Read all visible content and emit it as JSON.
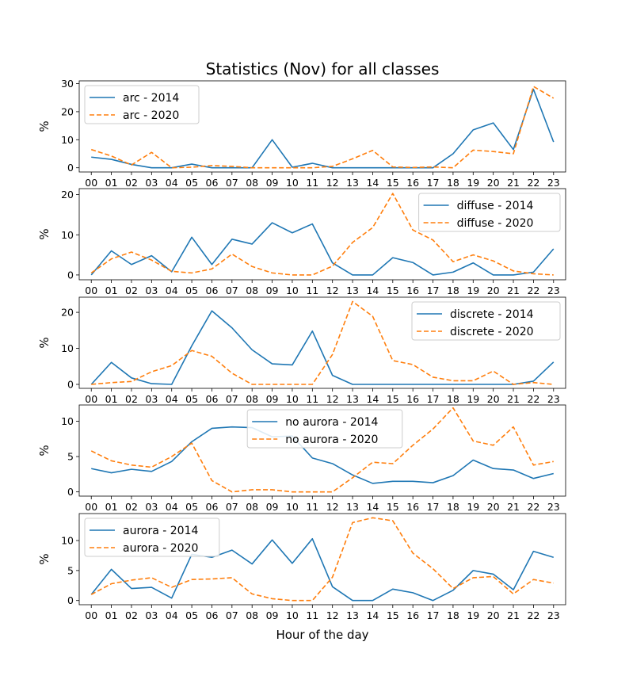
{
  "figure": {
    "title": "Statistics (Nov) for all classes",
    "xlabel": "Hour of the day",
    "colors": {
      "series_2014": "#1f77b4",
      "series_2020": "#ff7f0e"
    }
  },
  "chart_data": [
    {
      "type": "line",
      "ylabel": "%",
      "categories": [
        "00",
        "01",
        "02",
        "03",
        "04",
        "05",
        "06",
        "07",
        "08",
        "09",
        "10",
        "11",
        "12",
        "13",
        "14",
        "15",
        "16",
        "17",
        "18",
        "19",
        "20",
        "21",
        "22",
        "23"
      ],
      "ylim": [
        -1.5,
        31
      ],
      "yticks": [
        0,
        10,
        20,
        30
      ],
      "legend_position": "upper-left",
      "series": [
        {
          "name": "arc - 2014",
          "style": "solid",
          "values": [
            3.8,
            3.0,
            1.2,
            0,
            0,
            1.3,
            0,
            0,
            0,
            10.0,
            0.2,
            1.6,
            0,
            0,
            0,
            0,
            0,
            0,
            5.0,
            13.5,
            16.0,
            6.5,
            28.0,
            9.2
          ]
        },
        {
          "name": "arc - 2020",
          "style": "dashed",
          "values": [
            6.5,
            4.2,
            1.0,
            5.5,
            0,
            0.2,
            0.8,
            0.5,
            0,
            0,
            0,
            0,
            0.5,
            3.2,
            6.2,
            0.3,
            0.1,
            0.3,
            0,
            6.3,
            5.8,
            5.0,
            29.0,
            24.8
          ]
        }
      ]
    },
    {
      "type": "line",
      "ylabel": "%",
      "categories": [
        "00",
        "01",
        "02",
        "03",
        "04",
        "05",
        "06",
        "07",
        "08",
        "09",
        "10",
        "11",
        "12",
        "13",
        "14",
        "15",
        "16",
        "17",
        "18",
        "19",
        "20",
        "21",
        "22",
        "23"
      ],
      "ylim": [
        -1.2,
        21.5
      ],
      "yticks": [
        0,
        10,
        20
      ],
      "legend_position": "upper-right",
      "series": [
        {
          "name": "diffuse - 2014",
          "style": "solid",
          "values": [
            0,
            6.0,
            2.6,
            4.8,
            0.8,
            9.4,
            2.6,
            8.9,
            7.7,
            13.0,
            10.5,
            12.7,
            3.0,
            0,
            0,
            4.3,
            3.1,
            0,
            0.7,
            3.0,
            0,
            0,
            0.7,
            6.5
          ]
        },
        {
          "name": "diffuse - 2020",
          "style": "dashed",
          "values": [
            0.5,
            4.0,
            5.7,
            3.7,
            0.9,
            0.5,
            1.5,
            5.2,
            2.1,
            0.5,
            0,
            0,
            2.2,
            8.1,
            11.8,
            20.3,
            11.2,
            8.7,
            3.3,
            5.0,
            3.5,
            1.0,
            0.3,
            0
          ]
        }
      ]
    },
    {
      "type": "line",
      "ylabel": "%",
      "categories": [
        "00",
        "01",
        "02",
        "03",
        "04",
        "05",
        "06",
        "07",
        "08",
        "09",
        "10",
        "11",
        "12",
        "13",
        "14",
        "15",
        "16",
        "17",
        "18",
        "19",
        "20",
        "21",
        "22",
        "23"
      ],
      "ylim": [
        -1.1,
        24.2
      ],
      "yticks": [
        0,
        10,
        20
      ],
      "legend_position": "upper-right",
      "series": [
        {
          "name": "discrete - 2014",
          "style": "solid",
          "values": [
            0,
            6.1,
            1.8,
            0.2,
            0,
            10.7,
            20.4,
            15.7,
            9.6,
            5.7,
            5.4,
            14.8,
            2.5,
            0,
            0,
            0,
            0,
            0,
            0,
            0,
            0,
            0,
            0.9,
            6.2
          ]
        },
        {
          "name": "discrete - 2020",
          "style": "dashed",
          "values": [
            0,
            0.5,
            0.8,
            3.5,
            5.2,
            9.4,
            7.8,
            3.1,
            0,
            0,
            0,
            0,
            8.3,
            23.0,
            18.9,
            6.6,
            5.5,
            2.0,
            1.0,
            1.0,
            3.7,
            0,
            0.5,
            0
          ]
        }
      ]
    },
    {
      "type": "line",
      "ylabel": "%",
      "categories": [
        "00",
        "01",
        "02",
        "03",
        "04",
        "05",
        "06",
        "07",
        "08",
        "09",
        "10",
        "11",
        "12",
        "13",
        "14",
        "15",
        "16",
        "17",
        "18",
        "19",
        "20",
        "21",
        "22",
        "23"
      ],
      "ylim": [
        -0.6,
        12.3
      ],
      "yticks": [
        0,
        5,
        10
      ],
      "legend_position": "upper-center",
      "series": [
        {
          "name": "no aurora - 2014",
          "style": "solid",
          "values": [
            3.3,
            2.7,
            3.2,
            2.9,
            4.3,
            7.1,
            9.0,
            9.2,
            9.1,
            7.8,
            7.9,
            4.8,
            4.0,
            2.4,
            1.2,
            1.5,
            1.5,
            1.3,
            2.3,
            4.5,
            3.3,
            3.1,
            1.9,
            2.6
          ]
        },
        {
          "name": "no aurora - 2020",
          "style": "dashed",
          "values": [
            5.8,
            4.4,
            3.8,
            3.5,
            5.0,
            6.9,
            1.6,
            0,
            0.3,
            0.3,
            0,
            0,
            0,
            2.0,
            4.2,
            4.0,
            6.6,
            8.9,
            11.9,
            7.2,
            6.6,
            9.2,
            3.8,
            4.3
          ]
        }
      ]
    },
    {
      "type": "line",
      "ylabel": "%",
      "categories": [
        "00",
        "01",
        "02",
        "03",
        "04",
        "05",
        "06",
        "07",
        "08",
        "09",
        "10",
        "11",
        "12",
        "13",
        "14",
        "15",
        "16",
        "17",
        "18",
        "19",
        "20",
        "21",
        "22",
        "23"
      ],
      "ylim": [
        -0.7,
        14.5
      ],
      "yticks": [
        0,
        5,
        10
      ],
      "legend_position": "upper-left",
      "series": [
        {
          "name": "aurora - 2014",
          "style": "solid",
          "values": [
            1.0,
            5.2,
            2.0,
            2.2,
            0.4,
            7.7,
            7.2,
            8.4,
            6.1,
            10.1,
            6.2,
            10.3,
            2.3,
            0,
            0,
            1.9,
            1.3,
            0,
            1.7,
            5.0,
            4.4,
            1.8,
            8.2,
            7.2
          ]
        },
        {
          "name": "aurora - 2020",
          "style": "dashed",
          "values": [
            1.0,
            2.8,
            3.4,
            3.8,
            2.2,
            3.5,
            3.6,
            3.8,
            1.1,
            0.3,
            0,
            0,
            3.9,
            13.0,
            13.8,
            13.3,
            7.9,
            5.3,
            2.0,
            3.8,
            4.0,
            1.1,
            3.5,
            2.9
          ]
        }
      ]
    }
  ]
}
